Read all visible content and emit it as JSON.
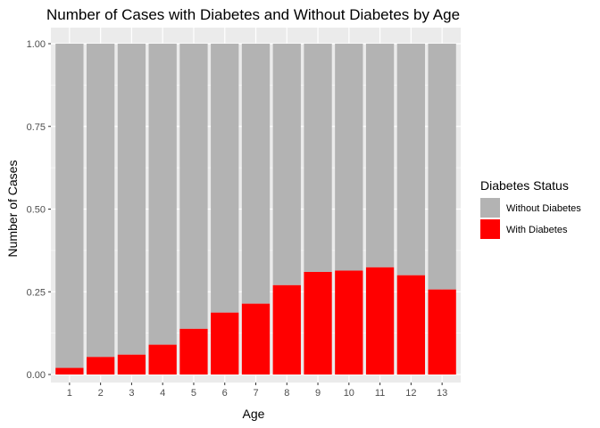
{
  "chart_data": {
    "type": "bar",
    "stacked": true,
    "title": "Number of Cases with Diabetes and Without Diabetes by Age",
    "xlabel": "Age",
    "ylabel": "Number of Cases",
    "categories": [
      "1",
      "2",
      "3",
      "4",
      "5",
      "6",
      "7",
      "8",
      "9",
      "10",
      "11",
      "12",
      "13"
    ],
    "ylim": [
      0,
      1
    ],
    "yticks": [
      0,
      0.25,
      0.5,
      0.75,
      1
    ],
    "ytick_labels": [
      "0.00",
      "0.25",
      "0.50",
      "0.75",
      "1.00"
    ],
    "grid": true,
    "series": [
      {
        "name": "With Diabetes",
        "color": "#ff0000",
        "values": [
          0.02,
          0.053,
          0.06,
          0.09,
          0.138,
          0.187,
          0.214,
          0.27,
          0.31,
          0.314,
          0.324,
          0.3,
          0.257
        ]
      },
      {
        "name": "Without Diabetes",
        "color": "#b3b3b3",
        "values": [
          0.98,
          0.947,
          0.94,
          0.91,
          0.862,
          0.813,
          0.786,
          0.73,
          0.69,
          0.686,
          0.676,
          0.7,
          0.743
        ]
      }
    ],
    "legend": {
      "title": "Diabetes Status",
      "position": "right",
      "entries": [
        {
          "label": "Without Diabetes",
          "color": "#b3b3b3"
        },
        {
          "label": "With Diabetes",
          "color": "#ff0000"
        }
      ]
    },
    "panel_background": "#ebebeb"
  }
}
